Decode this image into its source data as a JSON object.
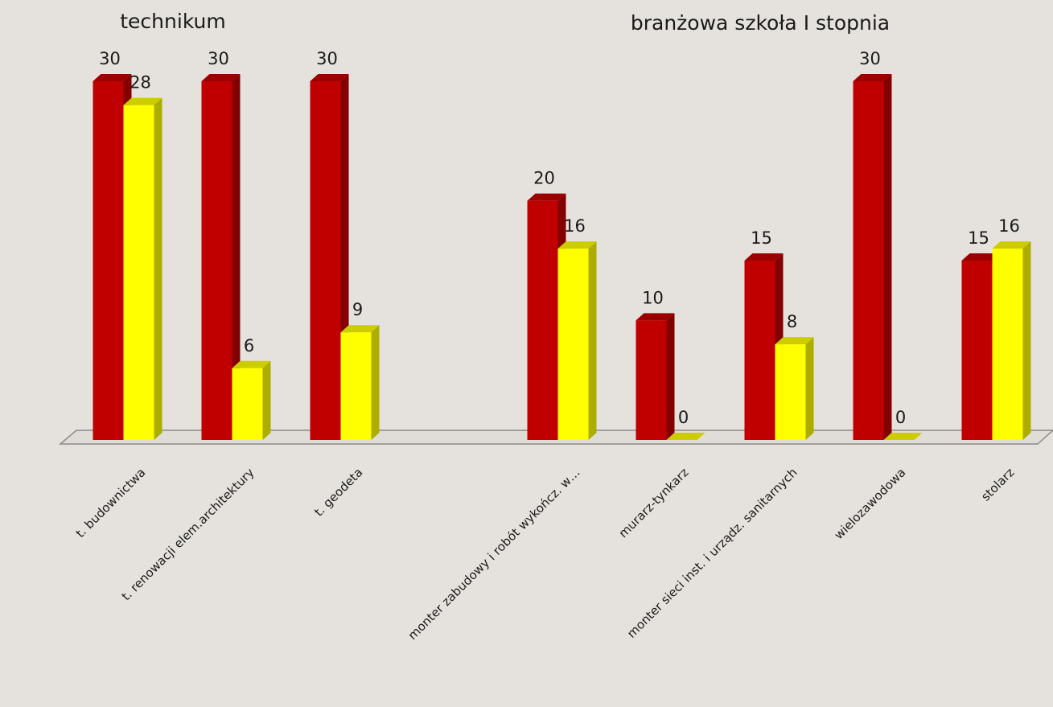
{
  "chart_data": {
    "type": "bar3d",
    "annotations": [
      "technikum",
      "branżowa szkoła I stopnia"
    ],
    "categories": [
      "t. budownictwa",
      "t. renowacji elem.architektury",
      "t. geodeta",
      null,
      "monter zabudowy i robót wykończ. w…",
      "murarz-tynkarz",
      "monter sieci inst. i urządz. sanitarnych",
      "wielozawodowa",
      "stolarz"
    ],
    "series": [
      {
        "color": "#c00000",
        "values": [
          30,
          30,
          30,
          null,
          20,
          10,
          15,
          30,
          15
        ]
      },
      {
        "color": "#ffff00",
        "values": [
          28,
          6,
          9,
          null,
          16,
          0,
          8,
          0,
          16
        ]
      }
    ]
  }
}
